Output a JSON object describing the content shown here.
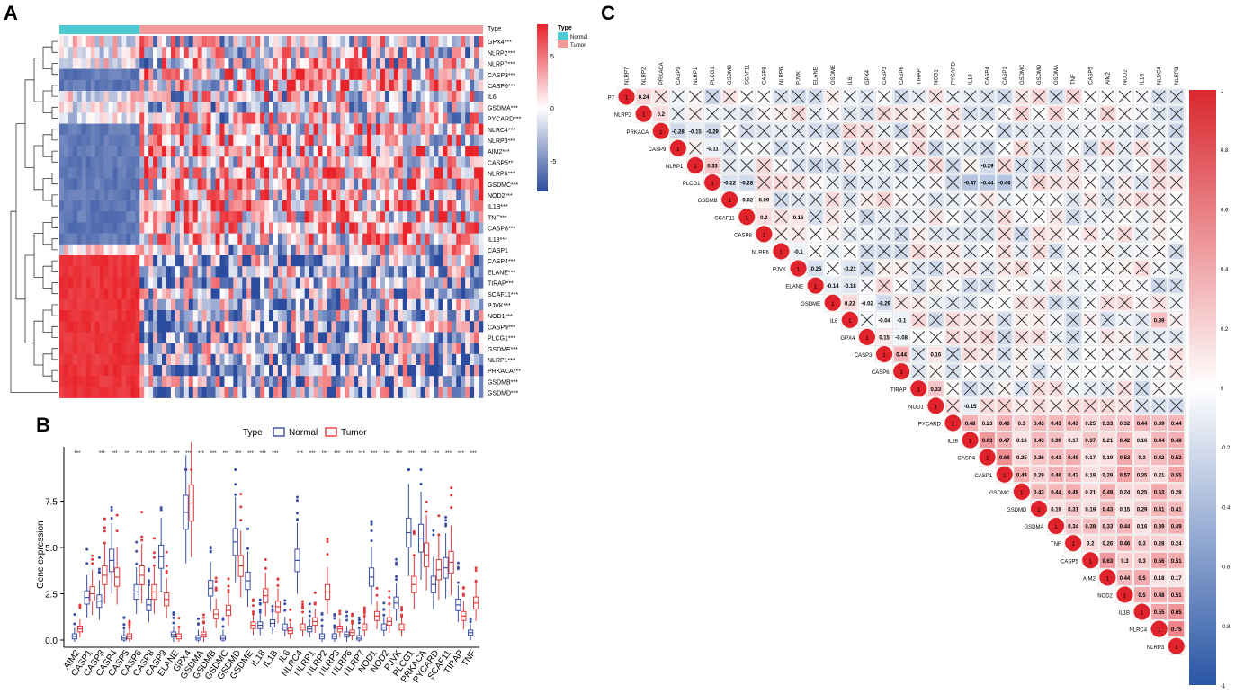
{
  "panels": {
    "a": "A",
    "b": "B",
    "c": "C"
  },
  "colors": {
    "normal": "#3a4fa3",
    "tumor": "#e03a3a",
    "heat_high": "#e8232a",
    "heat_mid": "#ffffff",
    "heat_low": "#2b4c9e",
    "normal_bar": "#4ec9cf",
    "tumor_bar": "#f29a9a"
  },
  "heatmap": {
    "type_label": "Type",
    "legend_title": "Type",
    "legend_items": [
      "Normal",
      "Tumor"
    ],
    "color_scale_ticks": [
      "5",
      "0",
      "-5"
    ],
    "genes": [
      "GPX4***",
      "NLRP2***",
      "NLRP7***",
      "CASP3***",
      "CASP6***",
      "IL6",
      "GSDMA***",
      "PYCARD***",
      "NLRC4***",
      "NLRP3***",
      "AIM2***",
      "CASP5**",
      "NLRP6***",
      "GSDMC***",
      "NOD2***",
      "IL1B***",
      "TNF***",
      "CASP8***",
      "IL18***",
      "CASP1",
      "CASP4***",
      "ELANE***",
      "TIRAP***",
      "SCAF11***",
      "PJVK***",
      "NOD1***",
      "CASP9***",
      "PLCG1***",
      "GSDME***",
      "NLRP1***",
      "PRKACA***",
      "GSDMB***",
      "GSDMD***"
    ]
  },
  "chart_data": [
    {
      "type": "box",
      "title": "",
      "legend_title": "Type",
      "legend": [
        "Normal",
        "Tumor"
      ],
      "ylabel": "Gene expression",
      "xlabel": "",
      "ylim": [
        -0.3,
        9.6
      ],
      "yticks": [
        "0.0",
        "2.5",
        "5.0",
        "7.5"
      ],
      "categories": [
        "AIM2",
        "CASP1",
        "CASP3",
        "CASP4",
        "CASP5",
        "CASP6",
        "CASP8",
        "CASP9",
        "ELANE",
        "GPX4",
        "GSDMA",
        "GSDMB",
        "GSDMC",
        "GSDMD",
        "GSDME",
        "IL18",
        "IL1B",
        "IL6",
        "NLRC4",
        "NLRP1",
        "NLRP2",
        "NLRP3",
        "NLRP6",
        "NLRP7",
        "NOD1",
        "NOD2",
        "PJVK",
        "PLCG1",
        "PRKACA",
        "PYCARD",
        "SCAF11",
        "TIRAP",
        "TNF"
      ],
      "significance": [
        "***",
        "",
        "***",
        "***",
        "**",
        "***",
        "***",
        "***",
        "***",
        "***",
        "***",
        "***",
        "***",
        "***",
        "***",
        "***",
        "***",
        "",
        "***",
        "***",
        "***",
        "***",
        "***",
        "***",
        "***",
        "***",
        "***",
        "***",
        "***",
        "***",
        "***",
        "***",
        "***"
      ],
      "series": [
        {
          "name": "Normal",
          "medians": [
            0.2,
            2.3,
            2.1,
            4.3,
            0.1,
            2.6,
            1.9,
            4.5,
            0.3,
            6.9,
            0.1,
            2.8,
            0.1,
            5.3,
            3.2,
            0.8,
            0.9,
            0.7,
            4.3,
            0.6,
            0.2,
            0.2,
            0.3,
            0.1,
            3.4,
            0.7,
            2.0,
            5.8,
            5.5,
            3.0,
            3.9,
            1.9,
            0.4
          ]
        },
        {
          "name": "Tumor",
          "medians": [
            0.6,
            2.5,
            3.5,
            3.4,
            0.2,
            3.5,
            2.6,
            2.2,
            0.2,
            7.4,
            0.3,
            1.4,
            1.6,
            4.0,
            0.8,
            2.4,
            1.8,
            0.5,
            0.7,
            1.0,
            2.6,
            0.6,
            0.4,
            0.7,
            1.3,
            1.0,
            0.7,
            3.0,
            4.6,
            3.8,
            4.2,
            1.3,
            2.0
          ]
        }
      ]
    },
    {
      "type": "heatmap",
      "title": "",
      "legend_ticks": [
        "1",
        "0.8",
        "0.6",
        "0.4",
        "0.2",
        "0",
        "-0.2",
        "-0.4",
        "-0.6",
        "-0.8",
        "-1"
      ],
      "variables": [
        "NLRP7",
        "NLRP2",
        "PRKACA",
        "CASP9",
        "NLRP1",
        "PLCG1",
        "GSDMB",
        "SCAF11",
        "CASP8",
        "NLRP6",
        "PJVK",
        "ELANE",
        "GSDME",
        "IL6",
        "GPX4",
        "CASP3",
        "CASP6",
        "TIRAP",
        "NOD1",
        "PYCARD",
        "IL18",
        "CASP4",
        "CASP1",
        "GSDMC",
        "GSDMD",
        "GSDMA",
        "TNF",
        "CASP5",
        "AIM2",
        "NOD2",
        "IL1B",
        "NLRC4",
        "NLRP3"
      ],
      "row_label_first": "P7",
      "diagonal_label": "1",
      "highlighted_values": [
        {
          "row": "NLRP7",
          "col": "NLRP2",
          "value": 0.24
        },
        {
          "row": "NLRP1",
          "col": "PLCG1",
          "value": 0.33
        },
        {
          "row": "SCAF11",
          "col": "CASP8",
          "value": 0.2
        },
        {
          "row": "GSDME",
          "col": "IL6",
          "value": 0.22
        },
        {
          "row": "GPX4",
          "col": "CASP3",
          "value": 0.15
        },
        {
          "row": "CASP3",
          "col": "CASP6",
          "value": 0.44
        },
        {
          "row": "TIRAP",
          "col": "NOD1",
          "value": 0.33
        },
        {
          "row": "PYCARD",
          "col": "IL18",
          "value": 0.48
        },
        {
          "row": "IL18",
          "col": "CASP4",
          "value": 0.63
        },
        {
          "row": "CASP4",
          "col": "CASP1",
          "value": 0.68
        },
        {
          "row": "CASP1",
          "col": "GSDMC",
          "value": 0.49
        },
        {
          "row": "GSDMC",
          "col": "GSDMD",
          "value": 0.43
        },
        {
          "row": "TNF",
          "col": "CASP5",
          "value": 0.2
        },
        {
          "row": "CASP5",
          "col": "AIM2",
          "value": 0.63
        },
        {
          "row": "AIM2",
          "col": "NOD2",
          "value": 0.44
        },
        {
          "row": "NOD2",
          "col": "IL1B",
          "value": 0.5
        },
        {
          "row": "IL1B",
          "col": "NLRC4",
          "value": 0.55
        },
        {
          "row": "NLRC4",
          "col": "NLRP3",
          "value": 0.75
        },
        {
          "row": "IL1B",
          "col": "NLRP3",
          "value": 0.65
        },
        {
          "row": "NOD2",
          "col": "NLRP3",
          "value": 0.51
        },
        {
          "row": "NOD2",
          "col": "NLRC4",
          "value": 0.48
        },
        {
          "row": "CASP1",
          "col": "NOD2",
          "value": 0.57
        },
        {
          "row": "CASP1",
          "col": "NLRP3",
          "value": 0.55
        },
        {
          "row": "CASP5",
          "col": "NLRC4",
          "value": 0.56
        },
        {
          "row": "CASP5",
          "col": "NLRP3",
          "value": 0.51
        },
        {
          "row": "PLCG1",
          "col": "CASP4",
          "value": -0.44
        },
        {
          "row": "PLCG1",
          "col": "IL18",
          "value": -0.47
        },
        {
          "row": "PLCG1",
          "col": "CASP1",
          "value": -0.46
        },
        {
          "row": "NLRP1",
          "col": "CASP4",
          "value": -0.29
        },
        {
          "row": "IL6",
          "col": "NLRC4",
          "value": 0.39
        }
      ]
    }
  ]
}
